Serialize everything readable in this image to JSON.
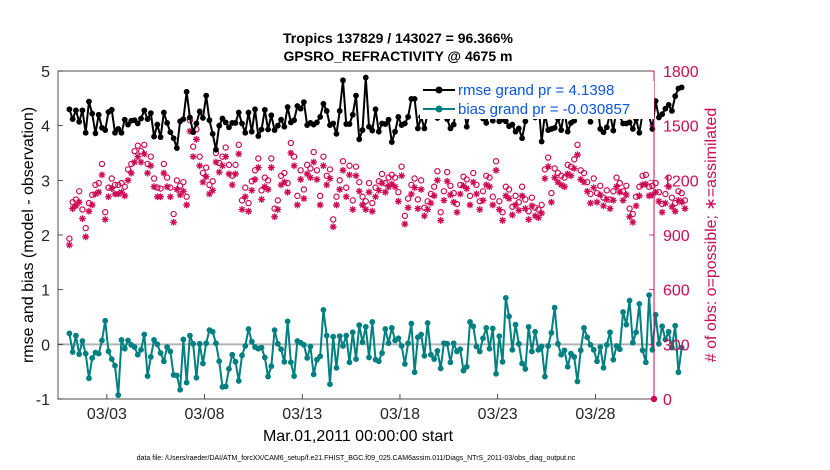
{
  "chart_data": {
    "type": "line",
    "title_line1": "Tropics 137829 / 143027 = 96.366%",
    "title_line2": "GPSRO_REFRACTIVITY @ 4675 m",
    "xlabel": "Mar.01,2011 00:00:00 start",
    "ylabel_left": "rmse and bias (model - observation)",
    "ylabel_right": "# of obs: o=possible; ∗=assimilated",
    "x_tick_labels": [
      "03/03",
      "03/08",
      "03/13",
      "03/18",
      "03/23",
      "03/28"
    ],
    "x_tick_days": [
      2,
      7,
      12,
      17,
      22,
      27
    ],
    "xlim": [
      0.5,
      31.0
    ],
    "ylim_left": [
      -1,
      5
    ],
    "y_ticks_left": [
      "-1",
      "0",
      "1",
      "2",
      "3",
      "4",
      "5"
    ],
    "ylim_right": [
      0,
      1800
    ],
    "y_ticks_right": [
      "0",
      "300",
      "600",
      "900",
      "1200",
      "1500",
      "1800"
    ],
    "legend": [
      {
        "label": "rmse grand pr = 4.1398",
        "color": "#000000"
      },
      {
        "label": "bias grand pr = -0.030857",
        "color": "#008080"
      }
    ],
    "colors": {
      "rmse": "#000000",
      "bias": "#008080",
      "obs": "#cc0a55",
      "zero_line": "#b4b4b4",
      "right_axis": "#cc0a55"
    },
    "series": [
      {
        "name": "rmse",
        "values": [
          4.3,
          4.12,
          4.28,
          4.07,
          4.28,
          3.87,
          4.44,
          4.22,
          3.86,
          4.2,
          3.96,
          3.92,
          4.25,
          4.29,
          3.87,
          3.94,
          3.87,
          4.11,
          4.02,
          4.09,
          4.1,
          4.04,
          4.13,
          4.28,
          4.12,
          4.23,
          3.8,
          4.02,
          3.79,
          4.24,
          4.05,
          3.88,
          3.77,
          3.59,
          4.08,
          4.12,
          4.62,
          4.15,
          3.88,
          4.04,
          4.26,
          4.14,
          4.55,
          4.1,
          3.85,
          3.56,
          4.0,
          4.13,
          4.06,
          3.97,
          4.05,
          4.05,
          4.24,
          4.04,
          3.87,
          4.24,
          3.89,
          4.3,
          3.81,
          3.93,
          4.29,
          3.93,
          4.19,
          3.92,
          4.0,
          4.11,
          3.98,
          4.34,
          4.06,
          4.1,
          4.36,
          4.31,
          4.43,
          4.01,
          4.05,
          4.02,
          4.06,
          4.16,
          4.4,
          4.27,
          4.01,
          4.04,
          3.85,
          4.27,
          4.83,
          4.03,
          4.03,
          4.2,
          4.55,
          3.75,
          3.92,
          4.88,
          3.98,
          3.91,
          4.3,
          3.89,
          4.04,
          4.03,
          4.11,
          3.7,
          3.89,
          4.16,
          4.01,
          4.04,
          4.16,
          4.49,
          4.49,
          3.95,
          4.16,
          3.95,
          4.22,
          4.18,
          4.27,
          4.14,
          4.25,
          4.28,
          4.12,
          3.95,
          4.02,
          4.45,
          4.49,
          4.37,
          3.98,
          4.29,
          4.61,
          4.22,
          4.31,
          4.13,
          4.05,
          4.35,
          4.09,
          4.21,
          4.08,
          4.11,
          4.08,
          3.99,
          4.02,
          3.89,
          3.95,
          3.77,
          4.08,
          4.28,
          4.18,
          4.15,
          4.43,
          3.71,
          4.21,
          3.92,
          3.94,
          3.96,
          4.13,
          3.92,
          4.29,
          3.89,
          4.05,
          4.09,
          4.22,
          4.45,
          4.22,
          4.23,
          4.07,
          4.47,
          4.5,
          3.94,
          3.88,
          3.97,
          4.22,
          3.91,
          4.32,
          4.17,
          4.04,
          4.04,
          4.06,
          3.94,
          4.12,
          3.87,
          4.23,
          4.32,
          4.18,
          3.94,
          4.45,
          4.15,
          4.21,
          4.31,
          4.38,
          4.27,
          4.54,
          4.68,
          4.7
        ]
      },
      {
        "name": "bias",
        "values": [
          0.2,
          -0.14,
          0.16,
          -0.18,
          0.06,
          -0.17,
          -0.62,
          -0.25,
          -0.15,
          -0.17,
          0.07,
          0.43,
          -0.13,
          -0.27,
          -0.39,
          -0.93,
          0.08,
          -0.08,
          0.07,
          -0.01,
          -0.05,
          -0.19,
          -0.1,
          0.18,
          -0.58,
          -0.23,
          0.08,
          0.0,
          -0.16,
          -0.31,
          -0.05,
          -0.13,
          -0.56,
          -0.57,
          -0.83,
          0.09,
          -0.7,
          0.16,
          0.01,
          -0.61,
          0.01,
          -0.35,
          0.02,
          0.26,
          0.23,
          0.02,
          -0.31,
          -0.78,
          -0.77,
          -0.45,
          -0.19,
          -0.32,
          -0.67,
          -0.2,
          -0.03,
          0.28,
          0.05,
          -0.05,
          -0.08,
          -0.06,
          -0.24,
          -0.59,
          -0.4,
          0.26,
          0.01,
          -0.09,
          -0.32,
          0.42,
          -0.33,
          -0.58,
          0.06,
          0.03,
          -0.01,
          -0.25,
          -0.04,
          -0.55,
          -0.28,
          -0.22,
          0.63,
          0.16,
          -0.73,
          0.14,
          -0.43,
          0.15,
          -0.03,
          0.16,
          -0.33,
          0.22,
          -0.27,
          0.35,
          0.04,
          0.32,
          -0.24,
          0.41,
          -0.28,
          -0.31,
          -0.16,
          0.28,
          0.02,
          0.3,
          0.07,
          0.11,
          -0.03,
          -0.36,
          0.02,
          0.38,
          -0.51,
          0.13,
          0.18,
          -0.21,
          0.39,
          -0.19,
          -0.27,
          -0.12,
          -0.44,
          0.02,
          0.01,
          -0.33,
          0.02,
          -0.13,
          -0.09,
          -0.48,
          -0.41,
          0.41,
          0.33,
          -0.04,
          -0.13,
          0.11,
          0.3,
          -0.08,
          0.29,
          -0.54,
          0.15,
          -0.32,
          0.85,
          0.51,
          -0.1,
          0.36,
          0.01,
          -0.35,
          -0.45,
          0.32,
          -0.13,
          0.23,
          -0.1,
          -0.04,
          -0.59,
          -0.03,
          0.21,
          0.67,
          0.01,
          -0.19,
          -0.11,
          -0.41,
          -0.17,
          -0.23,
          -0.68,
          -0.11,
          0.3,
          0.13,
          -0.01,
          -0.1,
          -0.31,
          -0.05,
          -0.43,
          -0.01,
          0.22,
          -0.28,
          -0.03,
          -0.09,
          0.59,
          0.36,
          0.8,
          0.03,
          0.22,
          0.74,
          -0.11,
          -0.33,
          0.9,
          -0.1,
          0.54,
          0.01,
          0.33,
          0.09,
          0.23,
          -0.06,
          0.34,
          -0.51,
          -0.06
        ]
      },
      {
        "name": "possible",
        "values": [
          880,
          1080,
          1095,
          1140,
          1040,
          938,
          1075,
          1120,
          1175,
          1185,
          1290,
          1025,
          1160,
          1210,
          1175,
          1175,
          1185,
          1165,
          1260,
          1290,
          1360,
          1390,
          1360,
          1395,
          1290,
          1330,
          1210,
          1160,
          1155,
          1290,
          1215,
          1160,
          1015,
          1200,
          1170,
          1190,
          1110,
          1530,
          1385,
          1480,
          1330,
          1240,
          1270,
          1175,
          1195,
          1350,
          1295,
          1330,
          1380,
          1285,
          1225,
          1285,
          1395,
          1090,
          1160,
          1075,
          1195,
          1255,
          1320,
          1145,
          1215,
          1200,
          1320,
          1045,
          1090,
          1225,
          1240,
          1185,
          1405,
          1330,
          1115,
          1255,
          1150,
          1285,
          1265,
          1355,
          1255,
          1115,
          1330,
          1225,
          1260,
          985,
          1110,
          1200,
          1305,
          1160,
          1280,
          1090,
          1275,
          1190,
          1110,
          1085,
          1185,
          1075,
          1160,
          1195,
          1235,
          1185,
          1215,
          1230,
          1215,
          1135,
          1275,
          1005,
          1100,
          1175,
          1210,
          1095,
          1200,
          1050,
          1085,
          1125,
          1165,
          1250,
          1025,
          1140,
          1245,
          1170,
          1130,
          1070,
          1175,
          1220,
          1205,
          1115,
          1240,
          1175,
          1085,
          1140,
          1225,
          1215,
          1110,
          1305,
          1085,
          1025,
          1165,
          1150,
          1055,
          1115,
          1080,
          1165,
          1095,
          1030,
          1105,
          1050,
          1040,
          1065,
          1260,
          1325,
          1130,
          1265,
          1240,
          1225,
          1215,
          1285,
          1275,
          1315,
          1395,
          1255,
          1240,
          1190,
          1125,
          1210,
          1130,
          1170,
          1105,
          1145,
          1095,
          1140,
          1215,
          1185,
          1140,
          1170,
          1045,
          1015,
          1110,
          1165,
          1225,
          1230,
          1165,
          1170,
          1185,
          1135,
          1070,
          1125,
          1215,
          1105,
          1075,
          1140,
          1130,
          1090
        ]
      },
      {
        "name": "assimilated",
        "values": [
          845,
          1045,
          1060,
          1080,
          990,
          890,
          1030,
          1065,
          1125,
          1135,
          1230,
          985,
          1110,
          1155,
          1125,
          1125,
          1135,
          1115,
          1200,
          1240,
          1300,
          1330,
          1300,
          1345,
          1240,
          1280,
          1165,
          1110,
          1110,
          1240,
          1165,
          1110,
          970,
          1150,
          1120,
          1140,
          1065,
          1470,
          1330,
          1425,
          1280,
          1190,
          1220,
          1125,
          1145,
          1300,
          1245,
          1280,
          1330,
          1235,
          1175,
          1235,
          1345,
          1040,
          1110,
          1030,
          1145,
          1205,
          1270,
          1095,
          1165,
          1150,
          1270,
          1000,
          1040,
          1175,
          1190,
          1135,
          1350,
          1280,
          1065,
          1205,
          1100,
          1235,
          1215,
          1300,
          1205,
          1065,
          1280,
          1175,
          1210,
          945,
          1065,
          1150,
          1255,
          1110,
          1230,
          1040,
          1225,
          1140,
          1065,
          1040,
          1135,
          1030,
          1110,
          1145,
          1185,
          1135,
          1165,
          1180,
          1165,
          1085,
          1225,
          960,
          1050,
          1125,
          1160,
          1045,
          1150,
          1005,
          1040,
          1075,
          1115,
          1200,
          980,
          1090,
          1195,
          1120,
          1080,
          1025,
          1125,
          1170,
          1155,
          1065,
          1190,
          1125,
          1040,
          1090,
          1175,
          1165,
          1065,
          1255,
          1040,
          980,
          1115,
          1100,
          1010,
          1065,
          1035,
          1115,
          1045,
          985,
          1060,
          1005,
          995,
          1020,
          1210,
          1275,
          1080,
          1215,
          1190,
          1175,
          1165,
          1235,
          1225,
          1265,
          1340,
          1205,
          1190,
          1140,
          1075,
          1160,
          1080,
          1120,
          1060,
          1095,
          1045,
          1090,
          1165,
          1135,
          1090,
          1120,
          1000,
          970,
          1060,
          1115,
          1175,
          1180,
          1115,
          1120,
          1135,
          1085,
          1025,
          1075,
          1165,
          1055,
          1030,
          1090,
          1080,
          1045
        ]
      }
    ]
  },
  "footer_text": "data file: /Users/raeder/DAI/ATM_forcXX/CAM6_setup/f.e21.FHIST_BGC.f09_025.CAM6assim.011/Diags_NTrS_2011-03/obs_diag_output.nc"
}
